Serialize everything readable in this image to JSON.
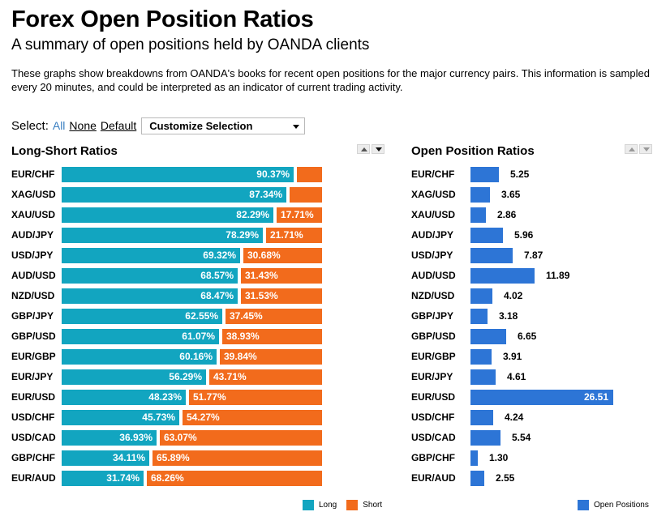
{
  "page": {
    "title": "Forex Open Position Ratios",
    "subtitle": "A summary of open positions held by OANDA clients",
    "description": "These graphs show breakdowns from OANDA's books for recent open positions for the major currency pairs. This information is sampled every 20 minutes, and could be interpreted as an indicator of current trading activity."
  },
  "select": {
    "label": "Select:",
    "all": "All",
    "none": "None",
    "default": "Default",
    "dropdown": "Customize Selection"
  },
  "colors": {
    "long": "#12a5c0",
    "short": "#f26b1c",
    "open": "#2d75d6"
  },
  "icons": {
    "sort_up": "sort-up-icon",
    "sort_down": "sort-down-icon",
    "dropdown": "chevron-down-icon"
  },
  "chart_data": [
    {
      "type": "bar",
      "stacked": true,
      "orientation": "horizontal",
      "title": "Long-Short Ratios",
      "categories": [
        "EUR/CHF",
        "XAG/USD",
        "XAU/USD",
        "AUD/JPY",
        "USD/JPY",
        "AUD/USD",
        "NZD/USD",
        "GBP/JPY",
        "GBP/USD",
        "EUR/GBP",
        "EUR/JPY",
        "EUR/USD",
        "USD/CHF",
        "USD/CAD",
        "GBP/CHF",
        "EUR/AUD"
      ],
      "series": [
        {
          "name": "Long",
          "values": [
            90.37,
            87.34,
            82.29,
            78.29,
            69.32,
            68.57,
            68.47,
            62.55,
            61.07,
            60.16,
            56.29,
            48.23,
            45.73,
            36.93,
            34.11,
            31.74
          ],
          "labels": [
            "90.37%",
            "87.34%",
            "82.29%",
            "78.29%",
            "69.32%",
            "68.57%",
            "68.47%",
            "62.55%",
            "61.07%",
            "60.16%",
            "56.29%",
            "48.23%",
            "45.73%",
            "36.93%",
            "34.11%",
            "31.74%"
          ]
        },
        {
          "name": "Short",
          "values": [
            9.63,
            12.66,
            17.71,
            21.71,
            30.68,
            31.43,
            31.53,
            37.45,
            38.93,
            39.84,
            43.71,
            51.77,
            54.27,
            63.07,
            65.89,
            68.26
          ],
          "labels": [
            "",
            "",
            "17.71%",
            "21.71%",
            "30.68%",
            "31.43%",
            "31.53%",
            "37.45%",
            "38.93%",
            "39.84%",
            "43.71%",
            "51.77%",
            "54.27%",
            "63.07%",
            "65.89%",
            "68.26%"
          ]
        }
      ],
      "xlim": [
        0,
        100
      ],
      "legend": "bottom-right"
    },
    {
      "type": "bar",
      "orientation": "horizontal",
      "title": "Open Position Ratios",
      "categories": [
        "EUR/CHF",
        "XAG/USD",
        "XAU/USD",
        "AUD/JPY",
        "USD/JPY",
        "AUD/USD",
        "NZD/USD",
        "GBP/JPY",
        "GBP/USD",
        "EUR/GBP",
        "EUR/JPY",
        "EUR/USD",
        "USD/CHF",
        "USD/CAD",
        "GBP/CHF",
        "EUR/AUD"
      ],
      "series": [
        {
          "name": "Open Positions",
          "values": [
            5.25,
            3.65,
            2.86,
            5.96,
            7.87,
            11.89,
            4.02,
            3.18,
            6.65,
            3.91,
            4.61,
            26.51,
            4.24,
            5.54,
            1.3,
            2.55
          ],
          "labels": [
            "5.25",
            "3.65",
            "2.86",
            "5.96",
            "7.87",
            "11.89",
            "4.02",
            "3.18",
            "6.65",
            "3.91",
            "4.61",
            "26.51",
            "4.24",
            "5.54",
            "1.30",
            "2.55"
          ]
        }
      ],
      "xlim": [
        0,
        26.51
      ],
      "legend": "bottom-right"
    }
  ]
}
